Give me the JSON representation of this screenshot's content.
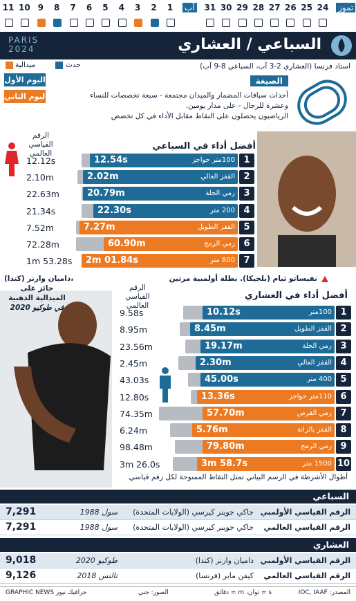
{
  "calendar": {
    "month1": "تموز",
    "days1": [
      "24",
      "25",
      "26",
      "27",
      "28",
      "29",
      "30",
      "31"
    ],
    "month2": "آب",
    "days2": [
      "1",
      "2",
      "3",
      "4",
      "5",
      "6",
      "7",
      "8",
      "9",
      "10",
      "11"
    ]
  },
  "header": {
    "logo": "PARIS 2024",
    "title": "السباعي / العشاري"
  },
  "legend": {
    "event": "حدث",
    "medal": "ميدالية"
  },
  "venue": "استاد فرنسا (العشاري 2-3 آب، السباعي 8-9 آب)",
  "days": {
    "first": "اليوم الأول",
    "second": "اليوم الثاني"
  },
  "format": {
    "heading": "الصيغة",
    "lines": [
      "أحداث سباقات المضمار والميدان مجتمعة - سبعة تخصصات للنساء",
      "وعشرة للرجال - على مدار يومين.",
      "الرياضيون يحصلون على النقاط مقابل الأداء في كل تخصص"
    ]
  },
  "heptathlon": {
    "heading": "أفضل أداء في السباعي",
    "wr_heading": "الرقم القياسي العالمي",
    "caption": "نفيساتو ثيام (بلجيكا). بطلة أولمبية مرتين",
    "rows": [
      [
        "1",
        "100متر حواجز",
        "12.54s",
        "12.12s"
      ],
      [
        "2",
        "القفز العالي",
        "2.02m",
        "2.10m"
      ],
      [
        "3",
        "رمي الجلة",
        "20.79m",
        "22.63m"
      ],
      [
        "4",
        "200 متر",
        "22.30s",
        "21.34s"
      ],
      [
        "5",
        "القفز الطويل",
        "7.27m",
        "7.52m"
      ],
      [
        "6",
        "رمي الرمح",
        "60.90m",
        "72.28m"
      ],
      [
        "7",
        "800 متر",
        "2m 01.84s",
        "1m 53.28s"
      ]
    ]
  },
  "decathlon": {
    "heading": "أفضل أداء في العشاري",
    "wr_heading": "الرقم القياسي العالمي",
    "caption": [
      "داميان وارنر (كندا)،",
      "حائز على",
      "الميدالية الذهبية",
      "في طوكيو 2020"
    ],
    "rows": [
      [
        "1",
        "100متر",
        "10.12s",
        "9.58s"
      ],
      [
        "2",
        "القفز الطويل",
        "8.45m",
        "8.95m"
      ],
      [
        "3",
        "رمي الجلة",
        "19.17m",
        "23.56m"
      ],
      [
        "4",
        "القفز العالي",
        "2.30m",
        "2.45m"
      ],
      [
        "5",
        "400 متر",
        "45.00s",
        "43.03s"
      ],
      [
        "6",
        "110متر حواجز",
        "13.36s",
        "12.80s"
      ],
      [
        "7",
        "رمي القرص",
        "57.70m",
        "74.35m"
      ],
      [
        "8",
        "القفز بالزانة",
        "5.76m",
        "6.24m"
      ],
      [
        "9",
        "رمي الرمح",
        "79.80m",
        "98.48m"
      ],
      [
        "10",
        "1500 متر",
        "3m 58.7s",
        "3m 26.0s"
      ]
    ],
    "note": "أطوال الأشرطة في الرسم البياني تمثل النقاط الممنوحة لكل رقم قياسي"
  },
  "records": [
    {
      "heading": "السباعي",
      "rows": [
        [
          "الرقم القياسي الأولمبي",
          "جاكي جوينر كيرسي (الولايات المتحدة)",
          "سول 1988",
          "7,291"
        ],
        [
          "الرقم القياسي العالمي",
          "جاكي جوينر كيرسي (الولايات المتحدة)",
          "سول 1988",
          "7,291"
        ]
      ]
    },
    {
      "heading": "العشاري",
      "rows": [
        [
          "الرقم القياسي الأولمبي",
          "داميان وارنر (كندا)",
          "طوكيو 2020",
          "9,018"
        ],
        [
          "الرقم القياسي العالمي",
          "كيفن ماير (فرنسا)",
          "تالنس 2018",
          "9,126"
        ]
      ]
    }
  ],
  "footer": {
    "source": "المصدر: IOC, IAAF",
    "units": "s = ثوان، m = دقائق",
    "photos": "الصور: جتي",
    "credit": "GRAPHIC NEWS جرافيك نيوز"
  }
}
